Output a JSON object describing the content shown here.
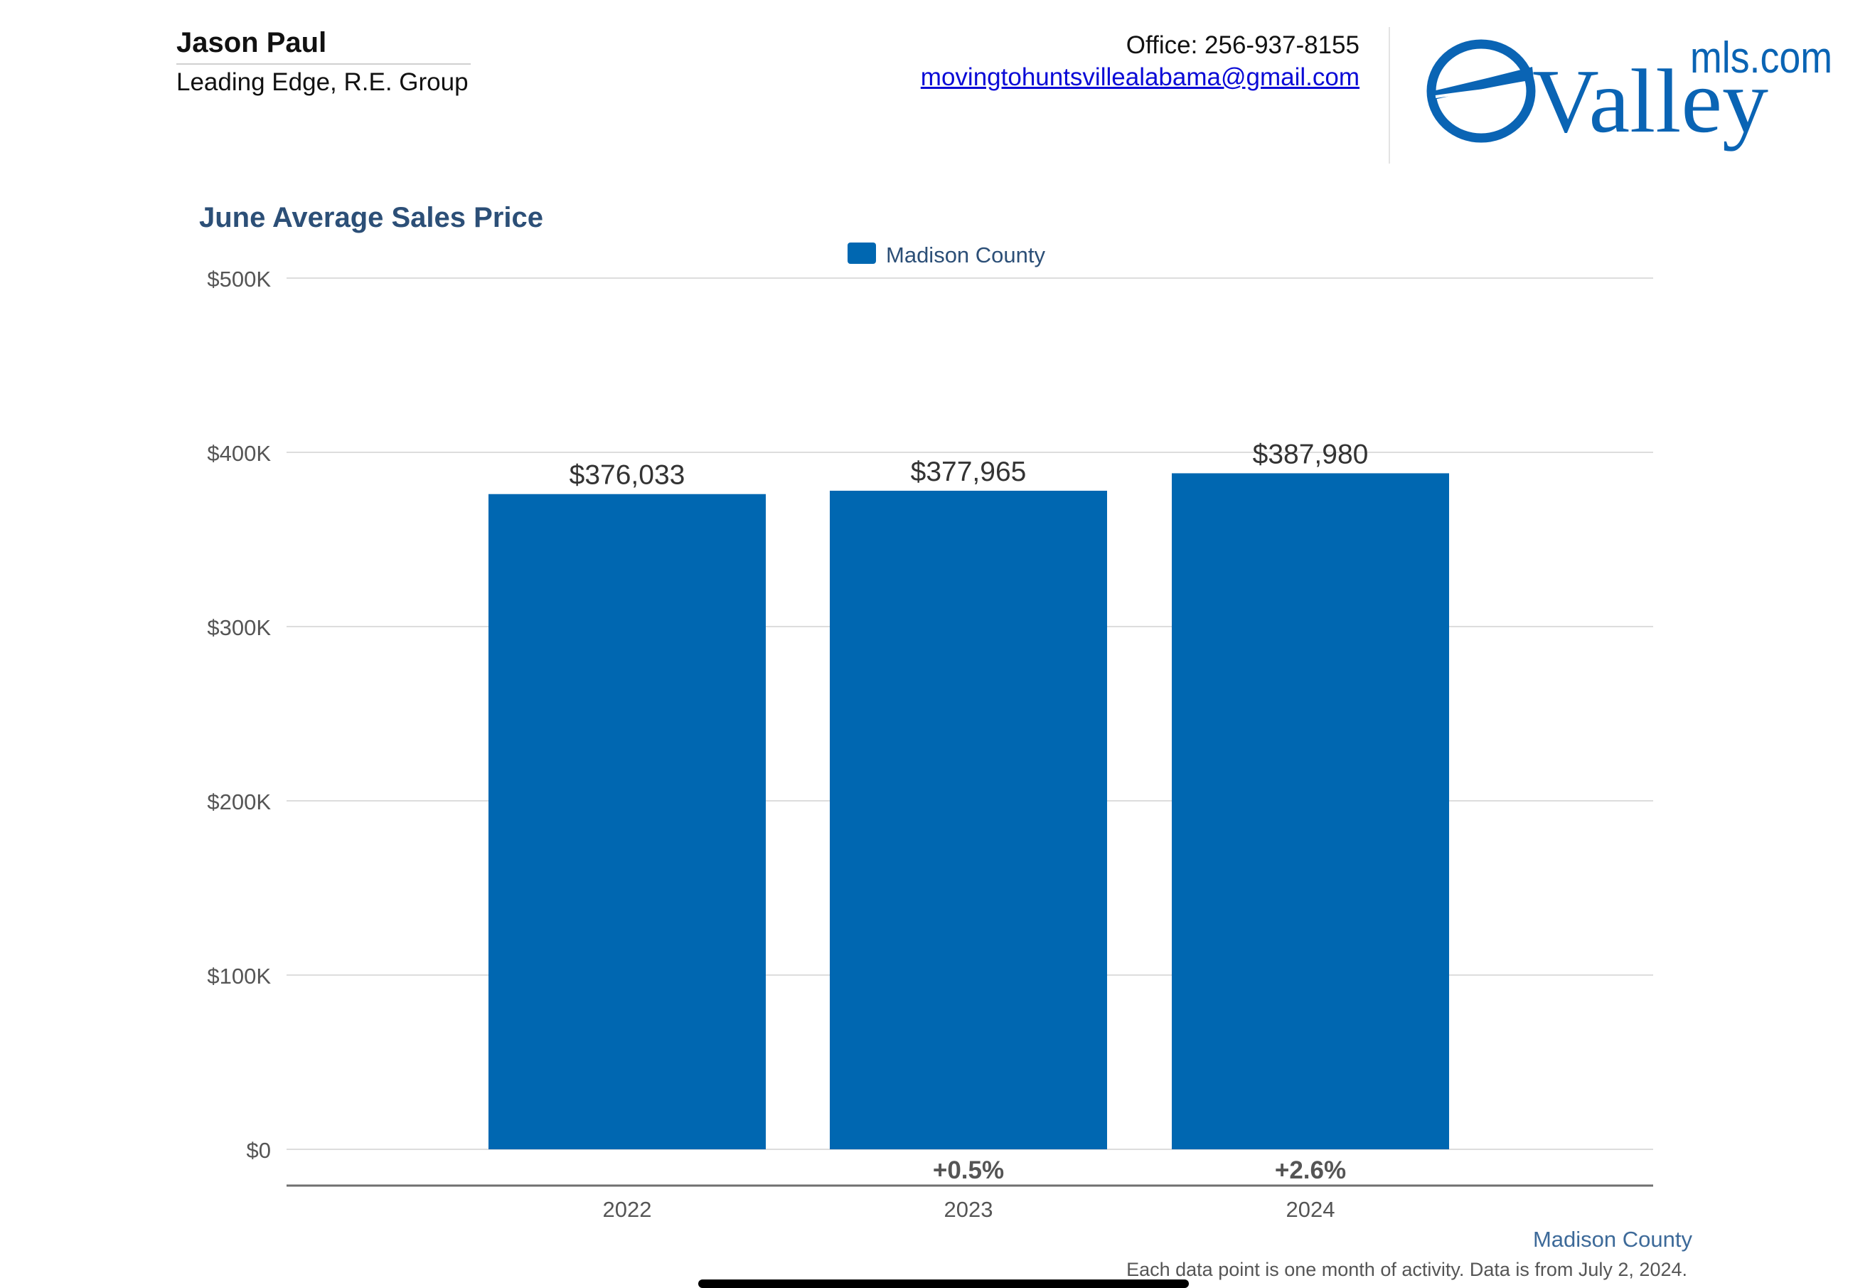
{
  "agent": {
    "name": "Jason Paul",
    "company": "Leading Edge, R.E. Group",
    "office": "Office: 256-937-8155",
    "email": "movingtohuntsvillealabama@gmail.com"
  },
  "logo": {
    "text_main": "Valley",
    "text_suffix": "mls.com",
    "color": "#0a64b4"
  },
  "colors": {
    "bar": "#0067b1",
    "title": "#2c4f77",
    "link": "#0a0ad6"
  },
  "chart_data": {
    "type": "bar",
    "title": "June Average Sales Price",
    "categories": [
      "2022",
      "2023",
      "2024"
    ],
    "series": [
      {
        "name": "Madison County",
        "values": [
          376033,
          377965,
          387980
        ],
        "labels": [
          "$376,033",
          "$377,965",
          "$387,980"
        ]
      }
    ],
    "changes": [
      "",
      "+0.5%",
      "+2.6%"
    ],
    "ylim": [
      0,
      500000
    ],
    "yticks": [
      0,
      100000,
      200000,
      300000,
      400000,
      500000
    ],
    "ytick_labels": [
      "$0",
      "$100K",
      "$200K",
      "$300K",
      "$400K",
      "$500K"
    ],
    "grid": true,
    "legend_position": "top-center",
    "source": "Madison County",
    "note": "Each data point is one month of activity. Data is from July 2, 2024."
  }
}
